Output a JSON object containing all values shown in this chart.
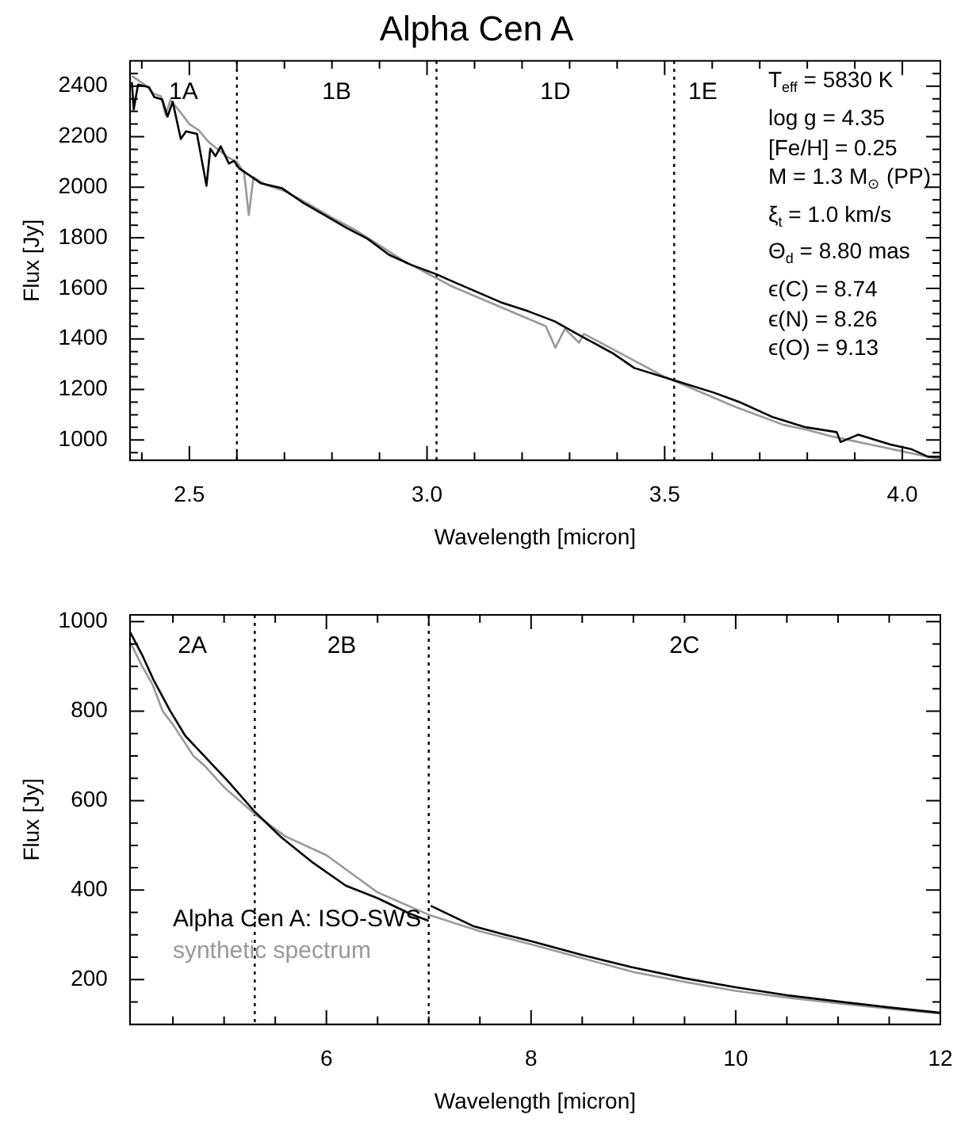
{
  "chart_data": [
    {
      "type": "line",
      "title": "Alpha Cen A",
      "xlabel": "Wavelength [micron]",
      "ylabel": "Flux [Jy]",
      "xlim": [
        2.375,
        4.08
      ],
      "ylim": [
        920,
        2500
      ],
      "xticks": [
        {
          "value": 2.4,
          "label": null
        },
        2.5,
        {
          "value": 2.6,
          "label": null
        },
        {
          "value": 2.7,
          "label": null
        },
        {
          "value": 2.8,
          "label": null
        },
        {
          "value": 2.9,
          "label": null
        },
        {
          "value": 3,
          "label": "3.0"
        },
        {
          "value": 3.1,
          "label": null
        },
        {
          "value": 3.2,
          "label": null
        },
        {
          "value": 3.3,
          "label": null
        },
        {
          "value": 3.4,
          "label": null
        },
        3.5,
        {
          "value": 3.6,
          "label": null
        },
        {
          "value": 3.7,
          "label": null
        },
        {
          "value": 3.8,
          "label": null
        },
        {
          "value": 3.9,
          "label": null
        },
        {
          "value": 4,
          "label": "4.0"
        }
      ],
      "yticks": [
        {
          "value": 950,
          "label": null
        },
        1000,
        {
          "value": 1050,
          "label": null
        },
        {
          "value": 1100,
          "label": null
        },
        {
          "value": 1150,
          "label": null
        },
        1200,
        {
          "value": 1250,
          "label": null
        },
        {
          "value": 1300,
          "label": null
        },
        {
          "value": 1350,
          "label": null
        },
        1400,
        {
          "value": 1450,
          "label": null
        },
        {
          "value": 1500,
          "label": null
        },
        {
          "value": 1550,
          "label": null
        },
        1600,
        {
          "value": 1650,
          "label": null
        },
        {
          "value": 1700,
          "label": null
        },
        {
          "value": 1750,
          "label": null
        },
        1800,
        {
          "value": 1850,
          "label": null
        },
        {
          "value": 1900,
          "label": null
        },
        {
          "value": 1950,
          "label": null
        },
        2000,
        {
          "value": 2050,
          "label": null
        },
        {
          "value": 2100,
          "label": null
        },
        {
          "value": 2150,
          "label": null
        },
        2200,
        {
          "value": 2250,
          "label": null
        },
        {
          "value": 2300,
          "label": null
        },
        {
          "value": 2350,
          "label": null
        },
        2400,
        {
          "value": 2450,
          "label": null
        }
      ],
      "grid": false,
      "series": [
        {
          "color": "#000000",
          "x": [
            2.379,
            2.383,
            2.392,
            2.415,
            2.426,
            2.443,
            2.454,
            2.465,
            2.482,
            2.493,
            2.516,
            2.536,
            2.544,
            2.555,
            2.566,
            2.583,
            2.594,
            2.605,
            2.628,
            2.65,
            2.695,
            2.74,
            2.785,
            2.83,
            2.875,
            2.92,
            2.965,
            3.021,
            3.043,
            3.1,
            3.155,
            3.212,
            3.268,
            3.324,
            3.391,
            3.436,
            3.52,
            3.604,
            3.66,
            3.728,
            3.795,
            3.862,
            3.87,
            3.907,
            3.975,
            4.02,
            4.054,
            4.08
          ],
          "values": [
            2416,
            2308,
            2406,
            2396,
            2357,
            2347,
            2279,
            2338,
            2191,
            2221,
            2211,
            2006,
            2152,
            2123,
            2162,
            2094,
            2104,
            2074,
            2045,
            2016,
            1996,
            1938,
            1889,
            1840,
            1796,
            1733,
            1694,
            1655,
            1636,
            1590,
            1545,
            1510,
            1470,
            1411,
            1343,
            1285,
            1236,
            1187,
            1148,
            1090,
            1051,
            1031,
            992,
            1021,
            982,
            963,
            934,
            934
          ]
        },
        {
          "color": "#999999",
          "x": [
            2.379,
            2.395,
            2.41,
            2.425,
            2.44,
            2.45,
            2.46,
            2.48,
            2.5,
            2.52,
            2.54,
            2.56,
            2.58,
            2.6,
            2.615,
            2.625,
            2.635,
            2.66,
            2.7,
            2.75,
            2.8,
            2.85,
            2.9,
            2.95,
            3.0,
            3.05,
            3.1,
            3.15,
            3.2,
            3.25,
            3.27,
            3.29,
            3.32,
            3.33,
            3.35,
            3.4,
            3.45,
            3.5,
            3.55,
            3.6,
            3.65,
            3.7,
            3.75,
            3.8,
            3.85,
            3.9,
            3.95,
            4.0,
            4.05,
            4.08
          ],
          "values": [
            2440,
            2420,
            2400,
            2370,
            2360,
            2285,
            2345,
            2300,
            2250,
            2225,
            2180,
            2150,
            2120,
            2100,
            2060,
            1890,
            2040,
            2010,
            1985,
            1935,
            1880,
            1830,
            1770,
            1710,
            1660,
            1610,
            1570,
            1530,
            1490,
            1450,
            1365,
            1440,
            1385,
            1420,
            1400,
            1350,
            1300,
            1250,
            1210,
            1170,
            1130,
            1095,
            1060,
            1040,
            1015,
            995,
            975,
            955,
            935,
            925
          ]
        }
      ],
      "ref_lines": [
        {
          "axis": "x",
          "value": 2.6,
          "line_style": "dotted",
          "color": "#000000"
        },
        {
          "axis": "x",
          "value": 3.02,
          "line_style": "dotted",
          "color": "#000000"
        },
        {
          "axis": "x",
          "value": 3.52,
          "line_style": "dotted",
          "color": "#000000"
        }
      ],
      "annotations": [
        "1A",
        "1B",
        "1D",
        "1E",
        "T$_{eff}$ = 5830 K",
        "log g = 4.35",
        "[Fe/H] = 0.25",
        "M = 1.3 M$_{⊙}$ (PP)",
        "ξ$_{t}$ = 1.0 km/s",
        "Θ$_{d}$ = 8.80 mas",
        "ϵ(C) = 8.74",
        "ϵ(N) = 8.26",
        "ϵ(O) = 9.13"
      ]
    },
    {
      "type": "line",
      "xlabel": "Wavelength [micron]",
      "ylabel": "Flux [Jy]",
      "xlim": [
        4.08,
        12
      ],
      "ylim": [
        100,
        1015
      ],
      "xticks": [
        {
          "value": 4.5,
          "label": null
        },
        {
          "value": 5,
          "label": null
        },
        {
          "value": 5.5,
          "label": null
        },
        6,
        {
          "value": 6.5,
          "label": null
        },
        {
          "value": 7,
          "label": null
        },
        {
          "value": 7.5,
          "label": null
        },
        8,
        {
          "value": 8.5,
          "label": null
        },
        {
          "value": 9,
          "label": null
        },
        {
          "value": 9.5,
          "label": null
        },
        10,
        {
          "value": 10.5,
          "label": null
        },
        {
          "value": 11,
          "label": null
        },
        {
          "value": 11.5,
          "label": null
        },
        12
      ],
      "yticks": [
        {
          "value": 150,
          "label": null
        },
        200,
        {
          "value": 250,
          "label": null
        },
        {
          "value": 300,
          "label": null
        },
        {
          "value": 350,
          "label": null
        },
        400,
        {
          "value": 450,
          "label": null
        },
        {
          "value": 500,
          "label": null
        },
        {
          "value": 550,
          "label": null
        },
        600,
        {
          "value": 650,
          "label": null
        },
        {
          "value": 700,
          "label": null
        },
        {
          "value": 750,
          "label": null
        },
        800,
        {
          "value": 850,
          "label": null
        },
        {
          "value": 900,
          "label": null
        },
        {
          "value": 950,
          "label": null
        },
        1000
      ],
      "grid": false,
      "legend": "bottom left",
      "series": [
        {
          "name": "Alpha Cen A: ISO-SWS",
          "color": "#000000",
          "x": [
            4.08,
            4.2,
            4.31,
            4.47,
            4.62,
            4.83,
            5.04,
            5.3,
            5.56,
            5.87,
            6.19,
            6.5,
            6.81,
            7.0,
            7.01,
            7.02,
            7.44,
            7.75,
            8.0,
            8.5,
            8.98,
            9.5,
            10.0,
            10.5,
            11.08,
            11.5,
            12.0
          ],
          "values": [
            977,
            925,
            870,
            802,
            745,
            694,
            643,
            575,
            518,
            461,
            410,
            382,
            348,
            331,
            null,
            365,
            319,
            300,
            286,
            255,
            228,
            203,
            183,
            165,
            149,
            138,
            126
          ]
        },
        {
          "name": "synthetic spectrum",
          "color": "#999999",
          "x": [
            4.08,
            4.2,
            4.3,
            4.4,
            4.5,
            4.6,
            4.7,
            4.8,
            5.0,
            5.3,
            5.6,
            6.0,
            6.5,
            7.0,
            7.5,
            8.0,
            8.5,
            9.0,
            9.5,
            10.0,
            10.5,
            11.0,
            11.5,
            12.0
          ],
          "values": [
            955,
            900,
            860,
            800,
            770,
            735,
            700,
            680,
            630,
            570,
            520,
            478,
            395,
            345,
            308,
            279,
            248,
            217,
            195,
            175,
            160,
            147,
            135,
            124
          ]
        }
      ],
      "ref_lines": [
        {
          "axis": "x",
          "value": 5.3,
          "line_style": "dotted",
          "color": "#000000"
        },
        {
          "axis": "x",
          "value": 7.0,
          "line_style": "dotted",
          "color": "#000000"
        }
      ],
      "annotations": [
        "2A",
        "2B",
        "2C"
      ]
    }
  ]
}
